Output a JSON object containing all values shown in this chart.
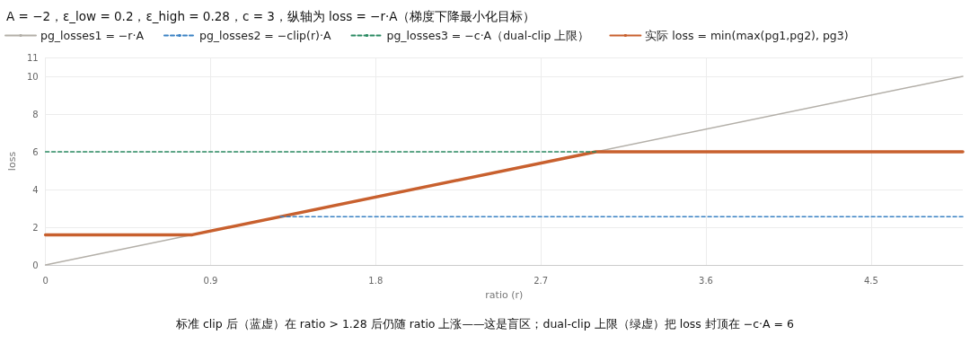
{
  "chart_data": {
    "type": "line",
    "title": "A = −2，ε_low = 0.2，ε_high = 0.28，c = 3，纵轴为 loss = −r·A（梯度下降最小化目标）",
    "xlabel": "ratio (r)",
    "ylabel": "loss",
    "annotations": [
      "标准 clip 后（蓝虚）在 ratio > 1.28 后仍随 ratio 上涨——这是盲区；dual-clip 上限（绿虚）把 loss 封顶在 −c·A = 6"
    ],
    "series": [
      {
        "name": "pg_losses1 = −r·A",
        "color": "#b3afa8",
        "x": [
          0,
          5
        ],
        "values": [
          0,
          10
        ],
        "line_style": "solid"
      },
      {
        "name": "pg_losses2 = −clip(r)·A",
        "color": "#3b82c4",
        "x": [
          1.28,
          5
        ],
        "values": [
          2.56,
          2.56
        ],
        "line_style": "dashed"
      },
      {
        "name": "pg_losses3 = −c·A（dual-clip 上限）",
        "color": "#2a8a62",
        "x": [
          0,
          3
        ],
        "values": [
          6,
          6
        ],
        "line_style": "dashed"
      },
      {
        "name": "实际 loss = min(max(pg1,pg2), pg3)",
        "color": "#c8602e",
        "x": [
          0,
          0.8,
          3,
          5
        ],
        "values": [
          1.6,
          1.6,
          6,
          6
        ],
        "line_style": "solid"
      }
    ],
    "xlim": [
      0,
      5
    ],
    "xticks": [
      0,
      0.9,
      1.8,
      2.7,
      3.6,
      4.5
    ],
    "ylim": [
      0,
      11
    ],
    "yticks": [
      0,
      2,
      4,
      6,
      8,
      10,
      11
    ],
    "grid": true,
    "legend": "top left",
    "marker": "none"
  }
}
